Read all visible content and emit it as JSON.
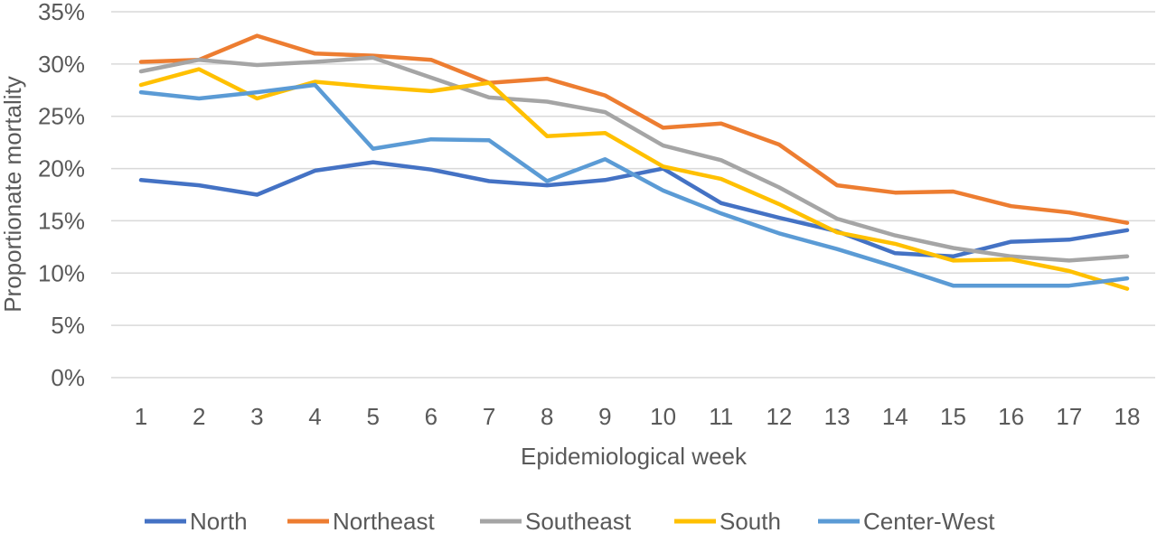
{
  "chart_data": {
    "type": "line",
    "title": "",
    "xlabel": "Epidemiological week",
    "ylabel": "Proportionate mortality",
    "x": [
      1,
      2,
      3,
      4,
      5,
      6,
      7,
      8,
      9,
      10,
      11,
      12,
      13,
      14,
      15,
      16,
      17,
      18
    ],
    "x_tick_labels": [
      "1",
      "2",
      "3",
      "4",
      "5",
      "6",
      "7",
      "8",
      "9",
      "10",
      "11",
      "12",
      "13",
      "14",
      "15",
      "16",
      "17",
      "18"
    ],
    "ylim": [
      0,
      35
    ],
    "y_ticks": [
      0,
      5,
      10,
      15,
      20,
      25,
      30,
      35
    ],
    "y_tick_labels": [
      "0%",
      "5%",
      "10%",
      "15%",
      "20%",
      "25%",
      "30%",
      "35%"
    ],
    "grid": true,
    "legend_position": "bottom",
    "series": [
      {
        "name": "North",
        "color": "#4472c4",
        "values": [
          18.9,
          18.4,
          17.5,
          19.8,
          20.6,
          19.9,
          18.8,
          18.4,
          18.9,
          20.0,
          16.7,
          15.3,
          14.0,
          11.9,
          11.6,
          13.0,
          13.2,
          14.1
        ]
      },
      {
        "name": "Northeast",
        "color": "#ed7d31",
        "values": [
          30.2,
          30.4,
          32.7,
          31.0,
          30.8,
          30.4,
          28.2,
          28.6,
          27.0,
          23.9,
          24.3,
          22.3,
          18.4,
          17.7,
          17.8,
          16.4,
          15.8,
          14.8
        ]
      },
      {
        "name": "Southeast",
        "color": "#a5a5a5",
        "values": [
          29.3,
          30.4,
          29.9,
          30.2,
          30.6,
          28.7,
          26.8,
          26.4,
          25.4,
          22.2,
          20.8,
          18.2,
          15.2,
          13.6,
          12.4,
          11.6,
          11.2,
          11.6
        ]
      },
      {
        "name": "South",
        "color": "#ffc000",
        "values": [
          28.0,
          29.5,
          26.7,
          28.3,
          27.8,
          27.4,
          28.2,
          23.1,
          23.4,
          20.2,
          19.0,
          16.6,
          13.9,
          12.8,
          11.2,
          11.3,
          10.2,
          8.5
        ]
      },
      {
        "name": "Center-West",
        "color": "#5b9bd5",
        "values": [
          27.3,
          26.7,
          27.3,
          28.0,
          21.9,
          22.8,
          22.7,
          18.8,
          20.9,
          17.9,
          15.7,
          13.8,
          12.3,
          10.6,
          8.8,
          8.8,
          8.8,
          9.5
        ]
      }
    ]
  }
}
